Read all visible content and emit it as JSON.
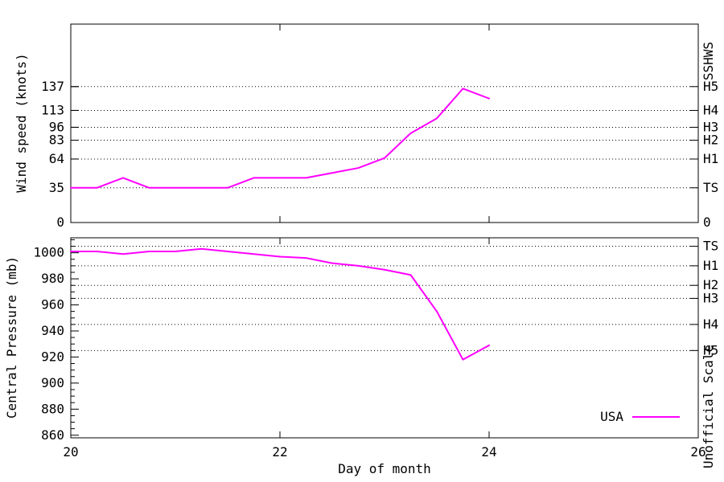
{
  "figure": {
    "xlabel": "Day of month",
    "legend": {
      "label": "USA",
      "color": "#ff00ff"
    }
  },
  "colors": {
    "series": "#ff00ff",
    "axis": "#000000",
    "background": "#ffffff"
  },
  "chart_data": [
    {
      "type": "line",
      "panel": "wind",
      "ylabel": "Wind speed (knots)",
      "y2label": "SSHWS",
      "xlabel": "",
      "xlim": [
        20,
        26
      ],
      "xticks": [
        20,
        22,
        24,
        26
      ],
      "ylim": [
        0,
        200
      ],
      "yticks": [
        0,
        35,
        64,
        83,
        96,
        113,
        137
      ],
      "gridlines": [
        35,
        64,
        83,
        96,
        113,
        137
      ],
      "y2ticks": [
        {
          "value": 137,
          "label": "H5"
        },
        {
          "value": 113,
          "label": "H4"
        },
        {
          "value": 96,
          "label": "H3"
        },
        {
          "value": 83,
          "label": "H2"
        },
        {
          "value": 64,
          "label": "H1"
        },
        {
          "value": 35,
          "label": "TS"
        },
        {
          "value": 0,
          "label": "0"
        }
      ],
      "x": [
        20,
        20.25,
        20.5,
        20.75,
        21,
        21.25,
        21.5,
        21.75,
        22,
        22.25,
        22.5,
        22.75,
        23,
        23.25,
        23.5,
        23.75,
        24
      ],
      "series": [
        {
          "name": "USA",
          "color": "#ff00ff",
          "values": [
            35,
            35,
            45,
            35,
            35,
            35,
            35,
            45,
            45,
            45,
            50,
            55,
            65,
            90,
            105,
            135,
            125
          ]
        }
      ]
    },
    {
      "type": "line",
      "panel": "pressure",
      "ylabel": "Central Pressure (mb)",
      "y2label": "Unofficial Scale",
      "xlabel": "Day of month",
      "xlim": [
        20,
        26
      ],
      "xticks": [
        20,
        22,
        24,
        26
      ],
      "ylim": [
        858,
        1011.5
      ],
      "yticks": [
        1000,
        980,
        960,
        940,
        920,
        900,
        880,
        860
      ],
      "yticks_minor_step": 5,
      "gridlines": [
        1005,
        990,
        975,
        965,
        945,
        925
      ],
      "y2ticks": [
        {
          "value": 1005,
          "label": "TS"
        },
        {
          "value": 990,
          "label": "H1"
        },
        {
          "value": 975,
          "label": "H2"
        },
        {
          "value": 965,
          "label": "H3"
        },
        {
          "value": 945,
          "label": "H4"
        },
        {
          "value": 925,
          "label": "H5"
        }
      ],
      "x": [
        20,
        20.25,
        20.5,
        20.75,
        21,
        21.25,
        21.5,
        21.75,
        22,
        22.25,
        22.5,
        22.75,
        23,
        23.25,
        23.5,
        23.75,
        24
      ],
      "series": [
        {
          "name": "USA",
          "color": "#ff00ff",
          "values": [
            1001,
            1001,
            999,
            1001,
            1001,
            1003,
            1001,
            999,
            997,
            996,
            992,
            990,
            987,
            983,
            955,
            918,
            929
          ]
        }
      ]
    }
  ]
}
